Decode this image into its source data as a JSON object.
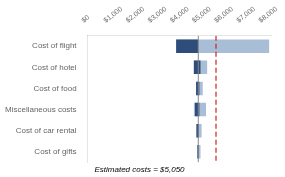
{
  "chart_data": {
    "type": "bar",
    "orientation": "horizontal",
    "categories": [
      "Cost of flight",
      "Cost of hotel",
      "Cost of food",
      "Miscellaneous costs",
      "Cost of car rental",
      "Cost of gifts"
    ],
    "series": [
      {
        "color": "#A8BDD6",
        "values": [
          [
            4000,
            8200
          ],
          [
            4800,
            5400
          ],
          [
            4900,
            5200
          ],
          [
            4800,
            5350
          ],
          [
            4900,
            5150
          ],
          [
            4950,
            5100
          ]
        ]
      },
      {
        "color": "#2E4D7B",
        "values": [
          [
            4000,
            5000
          ],
          [
            4800,
            5100
          ],
          [
            4900,
            5050
          ],
          [
            4850,
            5050
          ],
          [
            4920,
            5030
          ],
          [
            4960,
            5020
          ]
        ]
      }
    ],
    "reference_lines": [
      {
        "value": 5000,
        "color": "#888888",
        "line_style": "solid"
      },
      {
        "value": 5800,
        "color": "#CC2222",
        "line_style": "dashed"
      }
    ],
    "xlim": [
      0,
      8300
    ],
    "xticks": [
      {
        "value": 0,
        "label": "$0"
      },
      {
        "value": 1000,
        "label": "$1,000"
      },
      {
        "value": 2000,
        "label": "$2,000"
      },
      {
        "value": 3000,
        "label": "$3,000"
      },
      {
        "value": 4000,
        "label": "$4,000"
      },
      {
        "value": 5000,
        "label": "$5,000"
      },
      {
        "value": 6000,
        "label": "$6,000"
      },
      {
        "value": 7000,
        "label": "$7,000"
      },
      {
        "value": 8000,
        "label": "$8,000"
      }
    ],
    "annotation": "Estimated costs = $5,050",
    "grid": false
  }
}
